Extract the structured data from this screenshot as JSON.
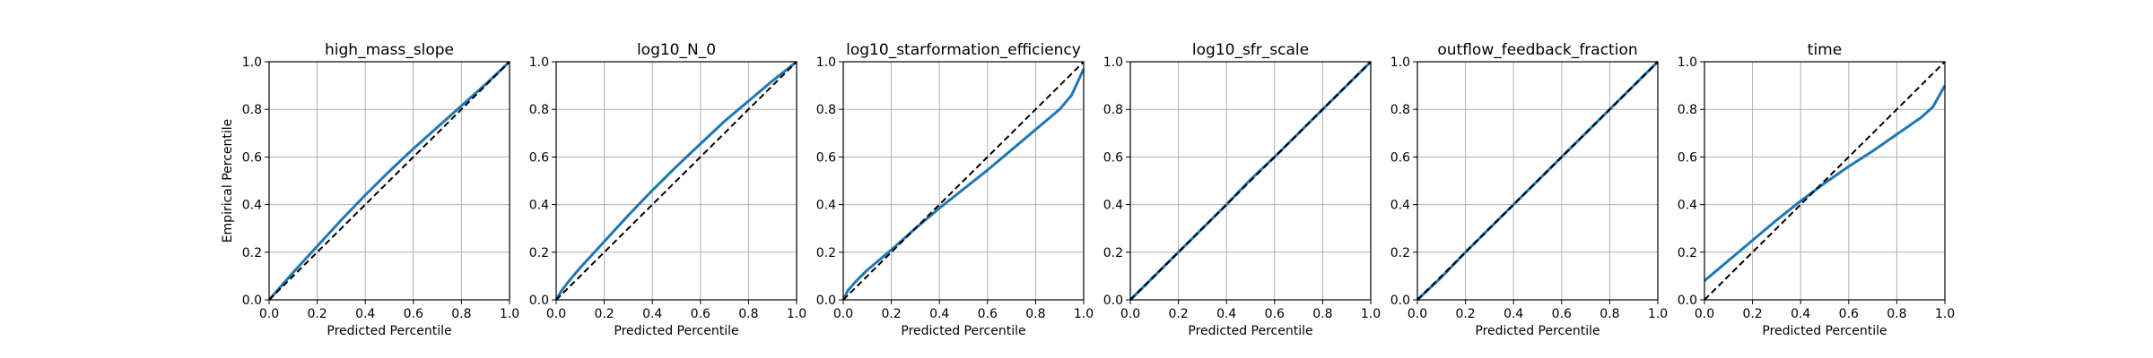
{
  "figure": {
    "shared_ylabel": "Empirical Percentile"
  },
  "chart_data": [
    {
      "type": "line",
      "title": "high_mass_slope",
      "xlabel": "Predicted Percentile",
      "ylabel": "Empirical Percentile",
      "xlim": [
        0,
        1
      ],
      "ylim": [
        0,
        1
      ],
      "xticks": [
        "0.0",
        "0.2",
        "0.4",
        "0.6",
        "0.8",
        "1.0"
      ],
      "yticks": [
        "0.0",
        "0.2",
        "0.4",
        "0.6",
        "0.8",
        "1.0"
      ],
      "grid": true,
      "series": [
        {
          "style": "solid",
          "color": "#1f77b4",
          "x": [
            0,
            0.1,
            0.2,
            0.3,
            0.4,
            0.5,
            0.6,
            0.7,
            0.8,
            0.9,
            1.0
          ],
          "y": [
            0,
            0.115,
            0.225,
            0.335,
            0.44,
            0.54,
            0.635,
            0.725,
            0.815,
            0.905,
            1.0
          ]
        },
        {
          "style": "dashed",
          "color": "#000000",
          "x": [
            0,
            1
          ],
          "y": [
            0,
            1
          ]
        }
      ]
    },
    {
      "type": "line",
      "title": "log10_N_0",
      "xlabel": "Predicted Percentile",
      "ylabel": "",
      "xlim": [
        0,
        1
      ],
      "ylim": [
        0,
        1
      ],
      "xticks": [
        "0.0",
        "0.2",
        "0.4",
        "0.6",
        "0.8",
        "1.0"
      ],
      "yticks": [
        "0.0",
        "0.2",
        "0.4",
        "0.6",
        "0.8",
        "1.0"
      ],
      "grid": true,
      "series": [
        {
          "style": "solid",
          "color": "#1f77b4",
          "x": [
            0,
            0.02,
            0.05,
            0.1,
            0.2,
            0.3,
            0.4,
            0.5,
            0.6,
            0.7,
            0.8,
            0.9,
            1.0
          ],
          "y": [
            0,
            0.035,
            0.075,
            0.135,
            0.245,
            0.355,
            0.46,
            0.56,
            0.655,
            0.75,
            0.835,
            0.92,
            1.0
          ]
        },
        {
          "style": "dashed",
          "color": "#000000",
          "x": [
            0,
            1
          ],
          "y": [
            0,
            1
          ]
        }
      ]
    },
    {
      "type": "line",
      "title": "log10_starformation_efficiency",
      "xlabel": "Predicted Percentile",
      "ylabel": "",
      "xlim": [
        0,
        1
      ],
      "ylim": [
        0,
        1
      ],
      "xticks": [
        "0.0",
        "0.2",
        "0.4",
        "0.6",
        "0.8",
        "1.0"
      ],
      "yticks": [
        "0.0",
        "0.2",
        "0.4",
        "0.6",
        "0.8",
        "1.0"
      ],
      "grid": true,
      "series": [
        {
          "style": "solid",
          "color": "#1f77b4",
          "x": [
            0,
            0.02,
            0.05,
            0.1,
            0.2,
            0.3,
            0.4,
            0.5,
            0.6,
            0.7,
            0.8,
            0.9,
            0.95,
            1.0
          ],
          "y": [
            0,
            0.04,
            0.075,
            0.125,
            0.21,
            0.3,
            0.385,
            0.465,
            0.545,
            0.63,
            0.715,
            0.8,
            0.86,
            0.97
          ]
        },
        {
          "style": "dashed",
          "color": "#000000",
          "x": [
            0,
            1
          ],
          "y": [
            0,
            1
          ]
        }
      ]
    },
    {
      "type": "line",
      "title": "log10_sfr_scale",
      "xlabel": "Predicted Percentile",
      "ylabel": "",
      "xlim": [
        0,
        1
      ],
      "ylim": [
        0,
        1
      ],
      "xticks": [
        "0.0",
        "0.2",
        "0.4",
        "0.6",
        "0.8",
        "1.0"
      ],
      "yticks": [
        "0.0",
        "0.2",
        "0.4",
        "0.6",
        "0.8",
        "1.0"
      ],
      "grid": true,
      "series": [
        {
          "style": "solid",
          "color": "#1f77b4",
          "x": [
            0,
            0.2,
            0.4,
            0.5,
            0.6,
            0.8,
            1.0
          ],
          "y": [
            0,
            0.2,
            0.4,
            0.505,
            0.6,
            0.8,
            1.0
          ]
        },
        {
          "style": "dashed",
          "color": "#000000",
          "x": [
            0,
            1
          ],
          "y": [
            0,
            1
          ]
        }
      ]
    },
    {
      "type": "line",
      "title": "outflow_feedback_fraction",
      "xlabel": "Predicted Percentile",
      "ylabel": "",
      "xlim": [
        0,
        1
      ],
      "ylim": [
        0,
        1
      ],
      "xticks": [
        "0.0",
        "0.2",
        "0.4",
        "0.6",
        "0.8",
        "1.0"
      ],
      "yticks": [
        "0.0",
        "0.2",
        "0.4",
        "0.6",
        "0.8",
        "1.0"
      ],
      "grid": true,
      "series": [
        {
          "style": "solid",
          "color": "#1f77b4",
          "x": [
            0,
            0.1,
            0.2,
            0.4,
            0.6,
            0.8,
            1.0
          ],
          "y": [
            0,
            0.095,
            0.2,
            0.4,
            0.6,
            0.8,
            1.0
          ]
        },
        {
          "style": "dashed",
          "color": "#000000",
          "x": [
            0,
            1
          ],
          "y": [
            0,
            1
          ]
        }
      ]
    },
    {
      "type": "line",
      "title": "time",
      "xlabel": "Predicted Percentile",
      "ylabel": "",
      "xlim": [
        0,
        1
      ],
      "ylim": [
        0,
        1
      ],
      "xticks": [
        "0.0",
        "0.2",
        "0.4",
        "0.6",
        "0.8",
        "1.0"
      ],
      "yticks": [
        "0.0",
        "0.2",
        "0.4",
        "0.6",
        "0.8",
        "1.0"
      ],
      "grid": true,
      "series": [
        {
          "style": "solid",
          "color": "#1f77b4",
          "x": [
            0,
            0.1,
            0.2,
            0.3,
            0.4,
            0.5,
            0.6,
            0.7,
            0.8,
            0.9,
            0.95,
            1.0
          ],
          "y": [
            0.08,
            0.165,
            0.25,
            0.335,
            0.415,
            0.49,
            0.56,
            0.625,
            0.695,
            0.765,
            0.81,
            0.9
          ]
        },
        {
          "style": "dashed",
          "color": "#000000",
          "x": [
            0,
            1
          ],
          "y": [
            0,
            1
          ]
        }
      ]
    }
  ]
}
